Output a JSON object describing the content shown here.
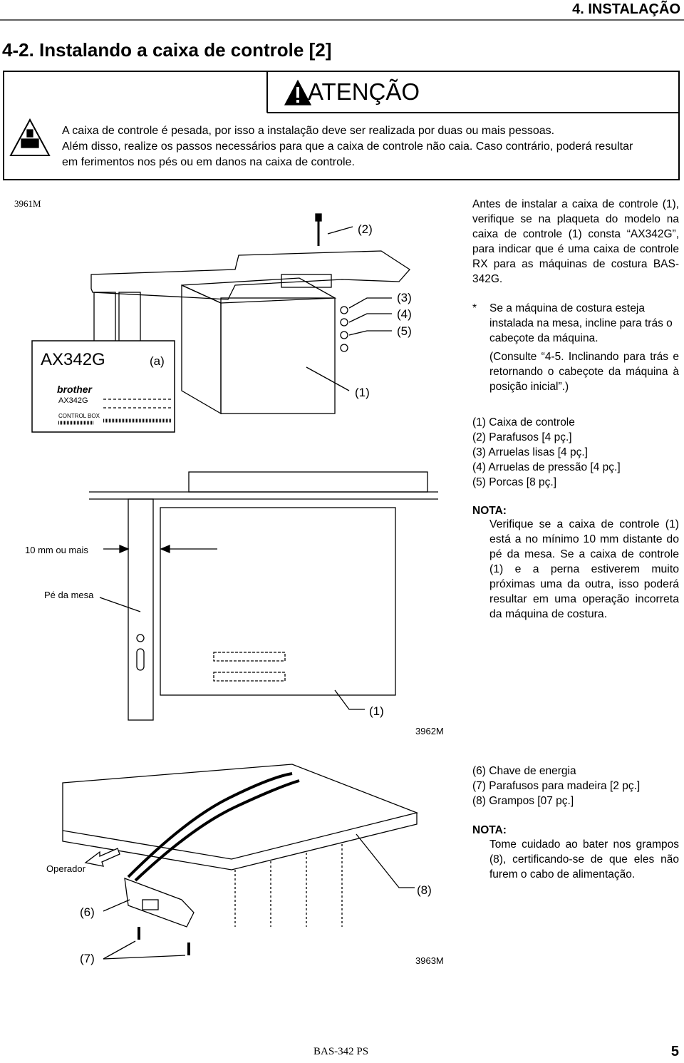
{
  "header": {
    "section": "4. INSTALAÇÃO",
    "title": "4-2. Instalando a caixa de controle [2]"
  },
  "warning": {
    "heading": "ATENÇÃO",
    "lines": [
      "A caixa de controle é pesada, por isso a instalação deve ser realizada por duas ou mais pessoas.",
      "Além disso, realize os passos necessários para que a caixa de controle não caia. Caso contrário, poderá resultar",
      "em ferimentos nos pés ou em danos na caixa de controle."
    ]
  },
  "figure1": {
    "code": "3961M",
    "callouts": [
      "(2)",
      "(3)",
      "(4)",
      "(5)",
      "(1)",
      "(a)"
    ],
    "label": {
      "model": "AX342G",
      "brand": "brother",
      "plate_model": "AX342G",
      "plate_text": "CONTROL BOX"
    }
  },
  "instructions": {
    "paragraph": "Antes de instalar a caixa de controle (1), verifique se na plaqueta do modelo na caixa de controle (1) consta “AX342G”, para indicar que é uma caixa de controle RX para as máquinas de costura BAS-342G.",
    "note_mark": "*",
    "note": "Se a máquina de costura esteja instalada na mesa, incline para trás o cabeçote da máquina.",
    "reference": "(Consulte “4-5. Inclinando para trás e retornando o cabeçote da máquina à posição inicial”.)"
  },
  "parts1": [
    "(1) Caixa de controle",
    "(2) Parafusos [4 pç.]",
    "(3) Arruelas lisas [4 pç.]",
    "(4) Arruelas de pressão [4 pç.]",
    "(5) Porcas [8 pç.]"
  ],
  "note1": {
    "heading": "NOTA:",
    "text": "Verifique se a caixa de controle (1) está a no mínimo 10 mm distante do pé da mesa. Se a caixa de controle (1) e a perna estiverem muito próximas uma da outra, isso poderá resultar em uma operação incorreta da máquina de costura."
  },
  "figure2": {
    "code": "3962M",
    "labels": [
      "10 mm ou mais",
      "Pé da mesa"
    ],
    "callout": "(1)"
  },
  "figure3": {
    "code": "3963M",
    "labels": [
      "Operador"
    ],
    "callouts": [
      "(6)",
      "(7)",
      "(8)"
    ]
  },
  "parts2": [
    "(6) Chave de energia",
    "(7) Parafusos para madeira [2 pç.]",
    "(8) Grampos [07 pç.]"
  ],
  "note2": {
    "heading": "NOTA:",
    "text": "Tome cuidado ao bater nos grampos (8), certificando-se de que eles não furem o cabo de alimentação."
  },
  "footer": {
    "model": "BAS-342 PS",
    "page": "5"
  }
}
